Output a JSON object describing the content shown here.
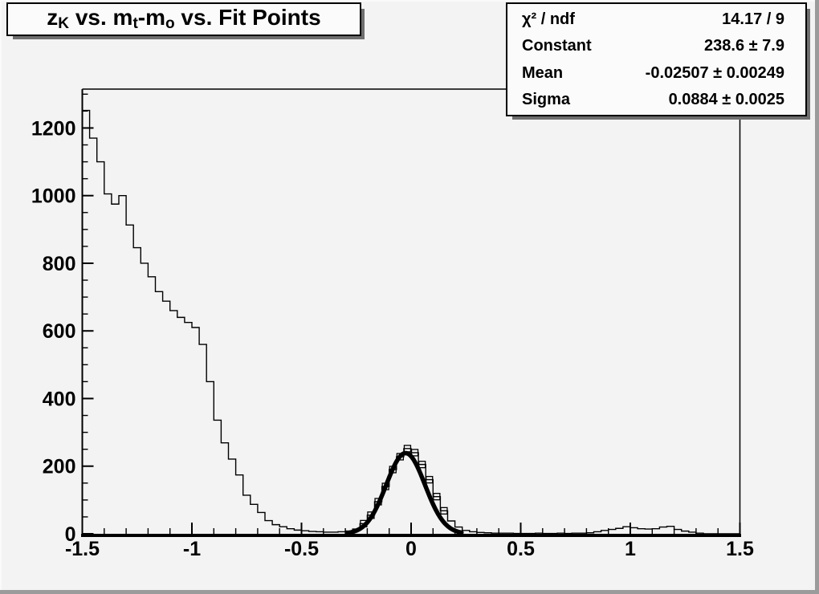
{
  "title": {
    "plain": "zK vs. mt-mo vs. Fit Points",
    "segments": [
      {
        "t": "z",
        "sub": false
      },
      {
        "t": "K",
        "sub": true
      },
      {
        "t": " vs. m",
        "sub": false
      },
      {
        "t": "t",
        "sub": true
      },
      {
        "t": "-m",
        "sub": false
      },
      {
        "t": "o",
        "sub": true
      },
      {
        "t": " vs. Fit Points",
        "sub": false
      }
    ]
  },
  "stats": {
    "rows": [
      {
        "label": "χ² / ndf",
        "value": "14.17 / 9"
      },
      {
        "label": "Constant",
        "value": "238.6 ± 7.9"
      },
      {
        "label": "Mean",
        "value": "-0.02507 ± 0.00249"
      },
      {
        "label": "Sigma",
        "value": "0.0884 ± 0.0025"
      }
    ]
  },
  "chart_data": {
    "type": "histogram",
    "title": "zK vs. mt-mo vs. Fit Points",
    "xlabel": "",
    "ylabel": "",
    "x_range": [
      -1.5,
      1.5
    ],
    "y_range": [
      0,
      1315
    ],
    "grid": false,
    "bin_start": -1.5,
    "bin_width": 0.0333333,
    "bin_values": [
      1252,
      1170,
      1100,
      1005,
      975,
      1000,
      913,
      846,
      800,
      760,
      716,
      688,
      660,
      640,
      625,
      610,
      560,
      450,
      336,
      269,
      221,
      174,
      114,
      87,
      63,
      39,
      27,
      21,
      15,
      11,
      9,
      7,
      6,
      5,
      5,
      6,
      8,
      14,
      30,
      55,
      95,
      140,
      190,
      228,
      252,
      240,
      205,
      160,
      110,
      68,
      38,
      20,
      10,
      6,
      4,
      3,
      2,
      2,
      2,
      1,
      1,
      1,
      2,
      1,
      1,
      2,
      1,
      2,
      2,
      3,
      6,
      10,
      13,
      16,
      21,
      18,
      15,
      14,
      15,
      20,
      22,
      13,
      8,
      5,
      2,
      0,
      0,
      0,
      0,
      0
    ],
    "x_major_ticks": [
      {
        "v": -1.5,
        "label": "-1.5"
      },
      {
        "v": -1.0,
        "label": "-1"
      },
      {
        "v": -0.5,
        "label": "-0.5"
      },
      {
        "v": 0.0,
        "label": "0"
      },
      {
        "v": 0.5,
        "label": "0.5"
      },
      {
        "v": 1.0,
        "label": "1"
      },
      {
        "v": 1.5,
        "label": "1.5"
      }
    ],
    "x_minor_step": 0.1,
    "y_major_ticks": [
      {
        "v": 0,
        "label": "0"
      },
      {
        "v": 200,
        "label": "200"
      },
      {
        "v": 400,
        "label": "400"
      },
      {
        "v": 600,
        "label": "600"
      },
      {
        "v": 800,
        "label": "800"
      },
      {
        "v": 1000,
        "label": "1000"
      },
      {
        "v": 1200,
        "label": "1200"
      }
    ],
    "y_minor_step": 50,
    "fit": {
      "type": "gaussian",
      "constant": 238.6,
      "mean": -0.02507,
      "sigma": 0.0884,
      "chi2": 14.17,
      "ndf": 9,
      "draw_range": [
        -0.29,
        0.23
      ]
    },
    "fit_points_bins": [
      38,
      39,
      40,
      41,
      42,
      43,
      44,
      45,
      46,
      47,
      48,
      49
    ]
  },
  "colors": {
    "canvas_bg": "#f3f3f3",
    "box_bg": "#fbfbfb",
    "line": "#000000",
    "shadow": "#6e6e6e"
  }
}
